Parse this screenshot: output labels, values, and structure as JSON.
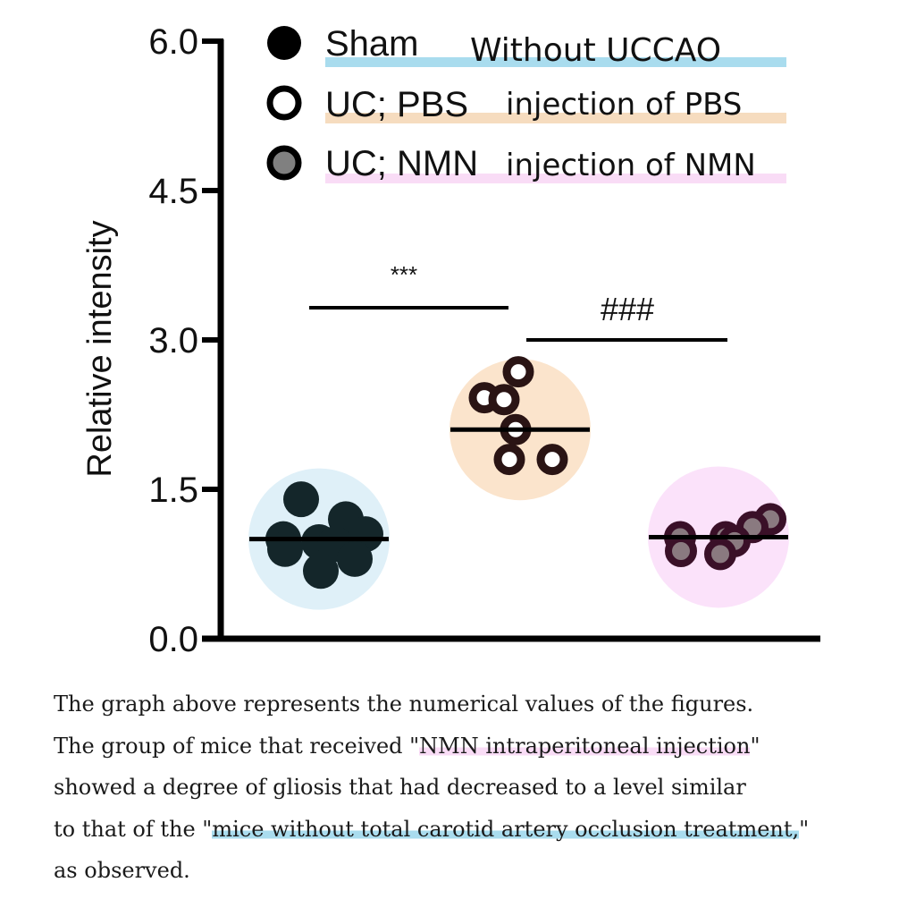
{
  "chart_data": {
    "type": "scatter",
    "ylabel": "Relative intensity",
    "ylim": [
      0,
      6.0
    ],
    "yticks": [
      "0.0",
      "1.5",
      "3.0",
      "4.5",
      "6.0"
    ],
    "groups": [
      {
        "name": "Sham",
        "marker": "filled-black",
        "annotation": "Without UCCAO",
        "mean": 1.0,
        "values": [
          1.4,
          1.2,
          1.05,
          1.0,
          0.97,
          0.95,
          0.9,
          0.8,
          0.68
        ]
      },
      {
        "name": "UC; PBS",
        "marker": "open",
        "annotation": "injection of PBS",
        "mean": 2.1,
        "values": [
          2.68,
          2.42,
          2.4,
          2.1,
          1.8,
          1.8
        ]
      },
      {
        "name": "UC; NMN",
        "marker": "gray-filled",
        "annotation": "injection of NMN",
        "mean": 1.02,
        "values": [
          1.2,
          1.12,
          1.02,
          1.02,
          0.98,
          0.88,
          0.85
        ]
      }
    ],
    "significance": [
      {
        "label": "***",
        "between": [
          "Sham",
          "UC; PBS"
        ]
      },
      {
        "label": "###",
        "between": [
          "UC; PBS",
          "UC; NMN"
        ]
      }
    ],
    "legend_placement": "top",
    "grid": false
  },
  "colors": {
    "sham_bg": "#dff0f8",
    "pbs_bg": "#fbe4cc",
    "nmn_bg": "#fbe2fa",
    "sham_highlight": "#a9dcee",
    "pbs_highlight": "#f6dcbf",
    "nmn_highlight": "#f9dcf6",
    "dot_dark": "#14262a",
    "open_ring": "#2a1414",
    "nmn_ring": "#3a1028",
    "nmn_fill": "#8a7a80"
  },
  "caption": {
    "line1": "The graph above represents the numerical values of the figures.",
    "line2_a": "The group of mice that received \"",
    "line2_hl": "NMN intraperitoneal injection",
    "line2_b": "\"",
    "line3": "showed a degree of gliosis that had decreased to a level similar",
    "line4_a": "to that of the \"",
    "line4_hl": "mice without total carotid artery occlusion treatment,",
    "line4_b": "\"",
    "line5": "as observed."
  }
}
